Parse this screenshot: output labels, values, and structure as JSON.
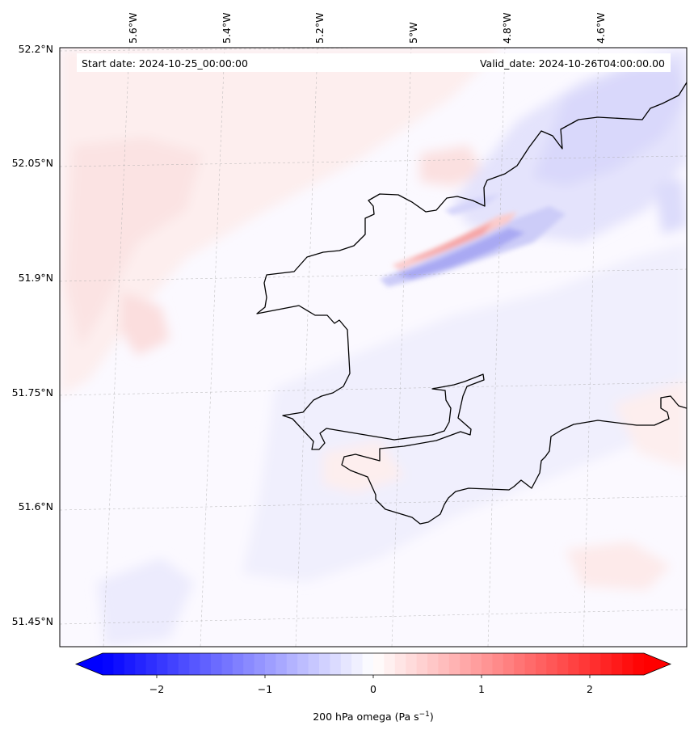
{
  "header": {
    "start_date": "Start date: 2024-10-25_00:00:00",
    "valid_date": "Valid_date: 2024-10-26T04:00:00.00"
  },
  "axes": {
    "lon_labels": [
      "5.6°W",
      "5.4°W",
      "5.2°W",
      "5°W",
      "4.8°W",
      "4.6°W"
    ],
    "lat_labels": [
      "52.2°N",
      "52.05°N",
      "51.9°N",
      "51.75°N",
      "51.6°N",
      "51.45°N"
    ]
  },
  "colorbar": {
    "ticks": [
      "−2",
      "−1",
      "0",
      "1",
      "2"
    ],
    "label_main": "200 hPa omega (Pa s",
    "label_sup": "−1",
    "label_end": ")",
    "min": -2.5,
    "max": 2.5,
    "colors": {
      "low": "#0000ff",
      "mid": "#ffffff",
      "high": "#ff0000"
    }
  }
}
